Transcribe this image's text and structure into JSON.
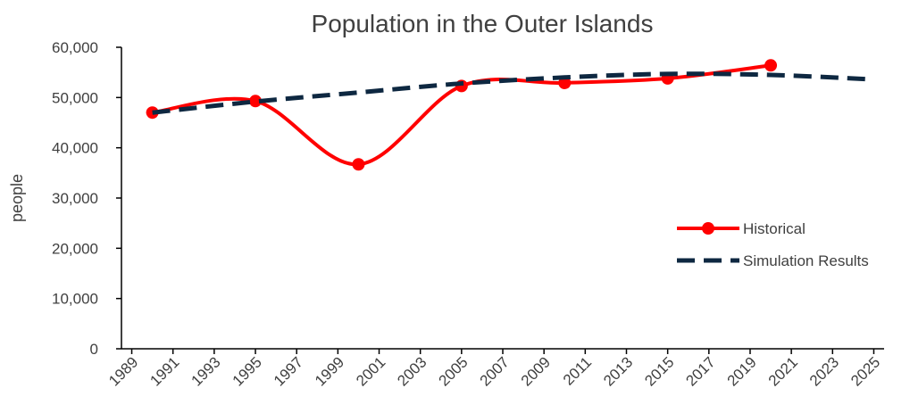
{
  "chart_data": {
    "type": "line",
    "title": "Population in the Outer Islands",
    "ylabel": "people",
    "xlim": [
      1988.5,
      2025.5
    ],
    "xticks": [
      1989,
      1991,
      1993,
      1995,
      1997,
      1999,
      2001,
      2003,
      2005,
      2007,
      2009,
      2011,
      2013,
      2015,
      2017,
      2019,
      2021,
      2023,
      2025
    ],
    "ylim": [
      0,
      60000
    ],
    "yticks": [
      0,
      {
        "value": 10000,
        "label": "10,000"
      },
      {
        "value": 20000,
        "label": "20,000"
      },
      {
        "value": 30000,
        "label": "30,000"
      },
      {
        "value": 40000,
        "label": "40,000"
      },
      {
        "value": 50000,
        "label": "50,000"
      },
      {
        "value": 60000,
        "label": "60,000"
      }
    ],
    "grid": false,
    "legend": "right",
    "series": [
      {
        "name": "Historical",
        "color": "#ff0000",
        "style": "solid",
        "markers": true,
        "smooth": true,
        "x": [
          1990,
          1995,
          2000,
          2005,
          2010,
          2015,
          2020
        ],
        "values": [
          47000,
          49300,
          36700,
          52300,
          52900,
          53800,
          56400
        ]
      },
      {
        "name": "Simulation Results",
        "color": "#0e2841",
        "style": "dashed",
        "markers": false,
        "smooth": true,
        "x": [
          1990,
          1995,
          2000,
          2005,
          2010,
          2015,
          2020,
          2025
        ],
        "values": [
          47000,
          49200,
          51000,
          52800,
          54000,
          54700,
          54500,
          53600
        ]
      }
    ]
  }
}
